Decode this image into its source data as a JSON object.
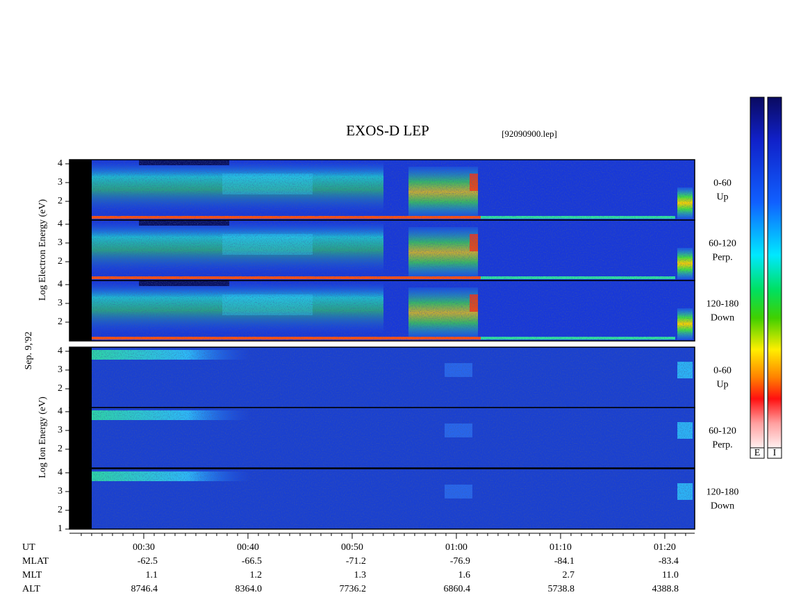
{
  "title": "EXOS-D LEP",
  "file": "[92090900.lep]",
  "date": "Sep. 9,'92",
  "electron_axis_label": "Log Electron Energy (eV)",
  "ion_axis_label": "Log Ion Energy (eV)",
  "color_bars": [
    "E",
    "I"
  ],
  "ylim": [
    1,
    4.22
  ],
  "panels": [
    {
      "species": "electron",
      "angle": "0-60",
      "direction": "Up",
      "yticks": [
        4,
        3,
        2
      ]
    },
    {
      "species": "electron",
      "angle": "60-120",
      "direction": "Perp.",
      "yticks": [
        4,
        3,
        2
      ]
    },
    {
      "species": "electron",
      "angle": "120-180",
      "direction": "Down",
      "yticks": [
        4,
        3,
        2
      ]
    },
    {
      "species": "ion",
      "angle": "0-60",
      "direction": "Up",
      "yticks": [
        4,
        3,
        2
      ]
    },
    {
      "species": "ion",
      "angle": "60-120",
      "direction": "Perp.",
      "yticks": [
        4,
        3,
        2
      ]
    },
    {
      "species": "ion",
      "angle": "120-180",
      "direction": "Down",
      "yticks": [
        4,
        3,
        2,
        1
      ]
    }
  ],
  "xlim": [
    22.87,
    82.87
  ],
  "xticks": [
    {
      "value": 30,
      "label": "00:30"
    },
    {
      "value": 40,
      "label": "00:40"
    },
    {
      "value": 50,
      "label": "00:50"
    },
    {
      "value": 60,
      "label": "01:00"
    },
    {
      "value": 70,
      "label": "01:10"
    },
    {
      "value": 80,
      "label": "01:20"
    }
  ],
  "xminor": [
    24,
    25,
    26,
    27,
    28,
    29,
    31,
    32,
    33,
    34,
    35,
    36,
    37,
    38,
    39,
    41,
    42,
    43,
    44,
    45,
    46,
    47,
    48,
    49,
    51,
    52,
    53,
    54,
    55,
    56,
    57,
    58,
    59,
    61,
    62,
    63,
    64,
    65,
    66,
    67,
    68,
    69,
    71,
    72,
    73,
    74,
    75,
    76,
    77,
    78,
    79,
    81,
    82
  ],
  "orbit_table": {
    "time_label": "UT",
    "rows": [
      {
        "name": "MLAT",
        "values": [
          "-62.5",
          "-66.5",
          "-71.2",
          "-76.9",
          "-84.1",
          "-83.4"
        ]
      },
      {
        "name": "MLT",
        "values": [
          "1.1",
          "1.2",
          "1.3",
          "1.6",
          "2.7",
          "11.0"
        ]
      },
      {
        "name": "ALT",
        "values": [
          "8746.4",
          "8364.0",
          "7736.2",
          "6860.4",
          "5738.8",
          "4388.8"
        ]
      }
    ]
  }
}
